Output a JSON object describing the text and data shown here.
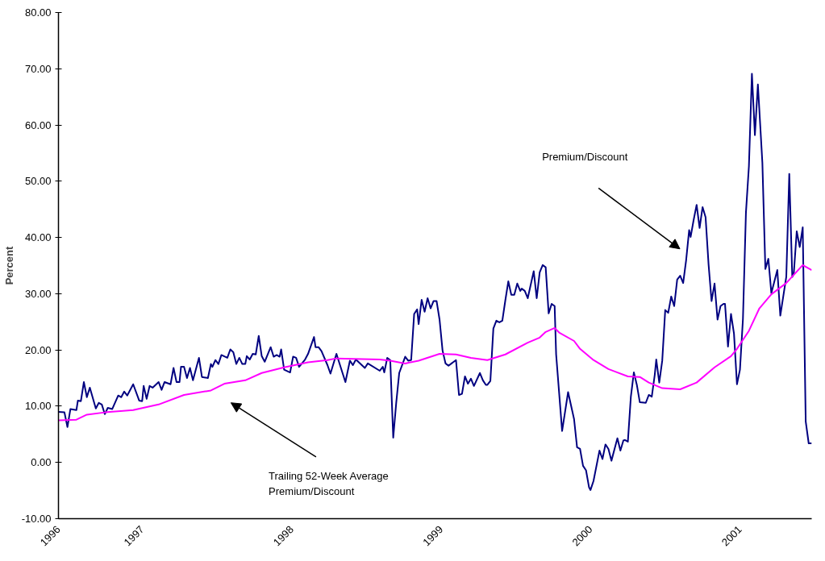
{
  "chart_data": {
    "type": "line",
    "ylabel": "Percent",
    "xlim": [
      1996.44,
      2001.48
    ],
    "ylim": [
      -10,
      80
    ],
    "xticks": [
      {
        "value": 1996.44,
        "label": "1996"
      },
      {
        "value": 1997,
        "label": "1997"
      },
      {
        "value": 1998,
        "label": "1998"
      },
      {
        "value": 1999,
        "label": "1999"
      },
      {
        "value": 2000,
        "label": "2000"
      },
      {
        "value": 2001,
        "label": "2001"
      }
    ],
    "yticks": [
      {
        "value": -10,
        "label": "-10.00"
      },
      {
        "value": 0,
        "label": "0.00"
      },
      {
        "value": 10,
        "label": "10.00"
      },
      {
        "value": 20,
        "label": "20.00"
      },
      {
        "value": 30,
        "label": "30.00"
      },
      {
        "value": 40,
        "label": "40.00"
      },
      {
        "value": 50,
        "label": "50.00"
      },
      {
        "value": 60,
        "label": "60.00"
      },
      {
        "value": 70,
        "label": "70.00"
      },
      {
        "value": 80,
        "label": "80.00"
      }
    ],
    "grid": false,
    "marker": "none",
    "line_style": "solid",
    "annotations": [
      "Premium/Discount",
      "Trailing 52-Week Average\nPremium/Discount"
    ],
    "series": [
      {
        "color": "#000080",
        "x": [
          1996.44,
          1996.48,
          1996.5,
          1996.52,
          1996.56,
          1996.57,
          1996.59,
          1996.61,
          1996.63,
          1996.65,
          1996.69,
          1996.71,
          1996.73,
          1996.75,
          1996.77,
          1996.8,
          1996.84,
          1996.86,
          1996.88,
          1996.9,
          1996.94,
          1996.98,
          1997.0,
          1997.01,
          1997.03,
          1997.05,
          1997.07,
          1997.11,
          1997.13,
          1997.15,
          1997.19,
          1997.21,
          1997.23,
          1997.25,
          1997.26,
          1997.28,
          1997.3,
          1997.32,
          1997.34,
          1997.38,
          1997.4,
          1997.44,
          1997.46,
          1997.47,
          1997.49,
          1997.51,
          1997.53,
          1997.57,
          1997.59,
          1997.61,
          1997.63,
          1997.65,
          1997.67,
          1997.69,
          1997.7,
          1997.72,
          1997.74,
          1997.76,
          1997.78,
          1997.8,
          1997.82,
          1997.86,
          1997.88,
          1997.9,
          1997.92,
          1997.93,
          1997.95,
          1997.99,
          1998.01,
          1998.03,
          1998.05,
          1998.09,
          1998.11,
          1998.15,
          1998.16,
          1998.18,
          1998.2,
          1998.24,
          1998.26,
          1998.3,
          1998.36,
          1998.39,
          1998.41,
          1998.43,
          1998.49,
          1998.51,
          1998.59,
          1998.61,
          1998.62,
          1998.64,
          1998.66,
          1998.68,
          1998.7,
          1998.72,
          1998.76,
          1998.78,
          1998.8,
          1998.82,
          1998.84,
          1998.85,
          1998.87,
          1998.89,
          1998.91,
          1998.93,
          1998.95,
          1998.97,
          1998.99,
          1999.01,
          1999.03,
          1999.05,
          1999.07,
          1999.08,
          1999.1,
          1999.12,
          1999.14,
          1999.16,
          1999.18,
          1999.2,
          1999.22,
          1999.26,
          1999.28,
          1999.3,
          1999.31,
          1999.33,
          1999.35,
          1999.37,
          1999.39,
          1999.41,
          1999.43,
          1999.45,
          1999.47,
          1999.49,
          1999.51,
          1999.53,
          1999.54,
          1999.56,
          1999.58,
          1999.62,
          1999.64,
          1999.66,
          1999.68,
          1999.7,
          1999.72,
          1999.74,
          1999.76,
          1999.77,
          1999.81,
          1999.85,
          1999.89,
          1999.91,
          1999.93,
          1999.95,
          1999.97,
          1999.99,
          2000.0,
          2000.02,
          2000.06,
          2000.08,
          2000.1,
          2000.12,
          2000.14,
          2000.18,
          2000.2,
          2000.22,
          2000.23,
          2000.25,
          2000.27,
          2000.29,
          2000.31,
          2000.33,
          2000.37,
          2000.39,
          2000.41,
          2000.43,
          2000.44,
          2000.46,
          2000.48,
          2000.5,
          2000.52,
          2000.54,
          2000.56,
          2000.58,
          2000.6,
          2000.62,
          2000.64,
          2000.66,
          2000.67,
          2000.69,
          2000.71,
          2000.73,
          2000.75,
          2000.77,
          2000.79,
          2000.81,
          2000.83,
          2000.85,
          2000.87,
          2000.89,
          2000.9,
          2000.92,
          2000.94,
          2000.96,
          2000.98,
          2001.0,
          2001.02,
          2001.04,
          2001.06,
          2001.08,
          2001.1,
          2001.12,
          2001.15,
          2001.17,
          2001.19,
          2001.21,
          2001.25,
          2001.27,
          2001.31,
          2001.33,
          2001.35,
          2001.36,
          2001.38,
          2001.4,
          2001.42,
          2001.44,
          2001.46,
          2001.48
        ],
        "values": [
          9.0,
          8.9,
          6.3,
          9.5,
          9.3,
          11.0,
          10.9,
          14.3,
          11.6,
          13.3,
          9.6,
          10.6,
          10.3,
          8.6,
          9.7,
          9.5,
          11.9,
          11.6,
          12.6,
          11.9,
          13.9,
          11.0,
          10.9,
          13.6,
          11.3,
          13.6,
          13.3,
          14.3,
          12.9,
          14.3,
          13.9,
          16.8,
          14.3,
          14.3,
          17.0,
          17.0,
          15.0,
          16.8,
          14.6,
          18.6,
          15.2,
          15.0,
          17.5,
          17.0,
          18.2,
          17.5,
          19.1,
          18.6,
          20.1,
          19.6,
          17.5,
          18.6,
          17.5,
          17.5,
          18.9,
          18.3,
          19.3,
          19.2,
          22.5,
          18.9,
          17.9,
          20.5,
          18.8,
          19.1,
          18.8,
          20.1,
          16.5,
          16.0,
          18.8,
          18.6,
          17.0,
          18.3,
          19.3,
          22.3,
          20.5,
          20.5,
          19.8,
          17.3,
          15.8,
          19.3,
          14.3,
          18.1,
          17.3,
          18.3,
          16.8,
          17.6,
          16.3,
          17.0,
          16.0,
          18.6,
          18.2,
          4.4,
          10.6,
          15.9,
          18.8,
          18.1,
          18.2,
          26.4,
          27.2,
          24.6,
          28.9,
          26.8,
          29.2,
          27.4,
          28.7,
          28.7,
          25.4,
          19.9,
          17.6,
          17.2,
          17.6,
          17.8,
          18.2,
          12.0,
          12.2,
          15.3,
          14.0,
          14.9,
          13.6,
          15.9,
          14.6,
          13.8,
          13.8,
          14.5,
          23.8,
          25.2,
          24.9,
          25.2,
          28.8,
          32.2,
          29.8,
          29.8,
          31.8,
          30.5,
          30.9,
          30.5,
          29.2,
          34.0,
          29.2,
          33.8,
          35.1,
          34.7,
          26.5,
          28.2,
          27.8,
          19.2,
          5.6,
          12.5,
          7.7,
          2.7,
          2.4,
          -0.6,
          -1.4,
          -4.4,
          -4.9,
          -3.3,
          2.1,
          0.6,
          3.2,
          2.4,
          0.3,
          4.3,
          2.1,
          3.9,
          4.0,
          3.7,
          11.7,
          16.0,
          13.8,
          10.7,
          10.6,
          12.0,
          11.7,
          15.6,
          18.3,
          14.2,
          18.1,
          27.1,
          26.6,
          29.5,
          27.8,
          32.5,
          33.2,
          31.9,
          36.0,
          41.3,
          40.1,
          43.1,
          45.8,
          41.7,
          45.4,
          43.6,
          35.2,
          28.7,
          31.8,
          25.4,
          27.8,
          28.2,
          28.2,
          20.6,
          26.4,
          22.9,
          13.9,
          16.5,
          25.5,
          44.4,
          52.7,
          69.1,
          58.2,
          67.2,
          53.3,
          34.4,
          36.2,
          30.1,
          34.2,
          26.1,
          33.0,
          51.3,
          33.0,
          33.5,
          41.1,
          38.3,
          41.8,
          7.3,
          3.4,
          3.4
        ]
      },
      {
        "color": "#ff00ff",
        "x": [
          1996.44,
          1996.56,
          1996.63,
          1996.75,
          1996.94,
          1997.11,
          1997.28,
          1997.46,
          1997.55,
          1997.69,
          1997.8,
          1997.95,
          1998.11,
          1998.24,
          1998.3,
          1998.59,
          1998.66,
          1998.76,
          1998.85,
          1998.99,
          1999.1,
          1999.2,
          1999.31,
          1999.43,
          1999.58,
          1999.66,
          1999.7,
          1999.76,
          1999.79,
          1999.89,
          1999.93,
          2000.02,
          2000.12,
          2000.25,
          2000.33,
          2000.39,
          2000.48,
          2000.6,
          2000.71,
          2000.83,
          2000.94,
          2000.98,
          2001.06,
          2001.13,
          2001.21,
          2001.31,
          2001.42,
          2001.48
        ],
        "values": [
          7.5,
          7.6,
          8.5,
          8.9,
          9.3,
          10.3,
          12.0,
          12.8,
          14.0,
          14.6,
          15.9,
          16.9,
          17.8,
          18.2,
          18.5,
          18.3,
          18.1,
          17.6,
          18.1,
          19.3,
          19.2,
          18.6,
          18.2,
          19.2,
          21.3,
          22.2,
          23.2,
          23.9,
          23.1,
          21.6,
          20.2,
          18.2,
          16.6,
          15.3,
          15.2,
          14.2,
          13.2,
          13.0,
          14.2,
          16.9,
          18.9,
          20.2,
          23.4,
          27.4,
          29.9,
          31.9,
          35.1,
          34.2
        ]
      }
    ]
  }
}
